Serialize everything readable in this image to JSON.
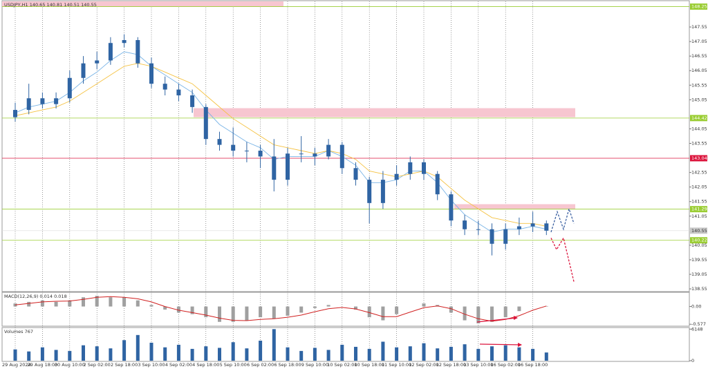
{
  "chart_data": [
    {
      "type": "candlestick",
      "title": "USDJPY,H1  140.65 140.81 140.51 140.55",
      "categories": [
        "29 Aug 2024",
        null,
        "29 Aug 18:00",
        null,
        "30 Aug 10:00",
        null,
        "2 Sep 02:00",
        null,
        "2 Sep 18:00",
        null,
        "3 Sep 10:00",
        null,
        "4 Sep 02:00",
        null,
        "4 Sep 18:00",
        null,
        "5 Sep 10:00",
        null,
        "6 Sep 02:00",
        null,
        "6 Sep 18:00",
        null,
        "9 Sep 10:00",
        null,
        "10 Sep 02:00",
        null,
        "10 Sep 18:00",
        null,
        "11 Sep 10:00",
        null,
        "12 Sep 02:00",
        null,
        "12 Sep 18:00",
        null,
        "13 Sep 10:00",
        null,
        "16 Sep 02:00",
        null,
        "16 Sep 18:00",
        null
      ],
      "open": [
        144.45,
        144.7,
        145.1,
        144.9,
        145.1,
        145.8,
        146.3,
        146.4,
        147.0,
        147.1,
        146.3,
        145.6,
        145.4,
        145.2,
        144.8,
        143.7,
        143.5,
        143.3,
        143.3,
        143.1,
        142.3,
        143.2,
        143.2,
        143.1,
        143.5,
        142.7,
        142.3,
        141.5,
        142.3,
        142.5,
        142.9,
        142.5,
        141.8,
        140.9,
        140.6,
        140.6,
        140.1,
        140.6,
        140.7,
        140.8
      ],
      "high": [
        144.95,
        145.6,
        145.3,
        145.3,
        146.05,
        146.55,
        146.7,
        147.2,
        147.3,
        147.2,
        146.5,
        145.85,
        145.6,
        145.4,
        144.9,
        143.95,
        144.1,
        143.6,
        143.5,
        143.7,
        143.4,
        143.8,
        143.4,
        143.7,
        143.6,
        142.9,
        142.4,
        142.6,
        142.8,
        143.1,
        143.0,
        142.6,
        141.9,
        141.1,
        140.9,
        140.8,
        140.8,
        141.0,
        141.2,
        140.9
      ],
      "low": [
        144.3,
        144.55,
        144.75,
        144.75,
        144.95,
        145.6,
        146.1,
        146.25,
        146.85,
        146.15,
        145.45,
        145.2,
        145.0,
        144.6,
        143.5,
        143.3,
        143.1,
        142.9,
        142.7,
        141.9,
        142.1,
        142.9,
        142.8,
        143.0,
        142.5,
        142.1,
        140.8,
        141.3,
        142.1,
        142.3,
        142.3,
        141.6,
        140.7,
        140.4,
        140.4,
        139.7,
        139.9,
        140.4,
        140.5,
        140.4
      ],
      "close": [
        144.7,
        145.1,
        144.9,
        145.1,
        145.8,
        146.3,
        146.4,
        147.0,
        147.1,
        146.3,
        145.6,
        145.4,
        145.2,
        144.8,
        143.7,
        143.5,
        143.3,
        143.3,
        143.1,
        142.3,
        143.2,
        143.2,
        143.1,
        143.5,
        142.7,
        142.3,
        141.5,
        142.3,
        142.5,
        142.9,
        142.5,
        141.8,
        140.9,
        140.6,
        140.6,
        140.1,
        140.6,
        140.7,
        140.8,
        140.55
      ],
      "color": "#2f64a3",
      "series": [
        {
          "color": "#79b4e6",
          "values": [
            144.6,
            144.8,
            144.9,
            145.0,
            145.3,
            145.7,
            146.0,
            146.4,
            146.7,
            146.6,
            146.2,
            145.9,
            145.6,
            145.3,
            144.7,
            144.2,
            143.9,
            143.6,
            143.4,
            143.0,
            143.1,
            143.1,
            143.1,
            143.3,
            143.1,
            142.8,
            142.2,
            142.2,
            142.3,
            142.6,
            142.6,
            142.2,
            141.6,
            141.1,
            140.8,
            140.5,
            140.6,
            140.6,
            140.7,
            140.6
          ]
        },
        {
          "color": "#f5c242",
          "values": [
            144.5,
            144.6,
            144.7,
            144.8,
            145.0,
            145.3,
            145.6,
            145.9,
            146.2,
            146.3,
            146.2,
            146.0,
            145.8,
            145.6,
            145.2,
            144.8,
            144.4,
            144.1,
            143.8,
            143.5,
            143.4,
            143.3,
            143.2,
            143.3,
            143.2,
            143.0,
            142.6,
            142.5,
            142.4,
            142.5,
            142.6,
            142.4,
            142.0,
            141.6,
            141.3,
            141.0,
            140.9,
            140.8,
            140.8,
            140.7
          ]
        }
      ],
      "ylim": [
        138.48,
        148.43
      ],
      "yticks": [
        147.55,
        147.05,
        146.55,
        146.05,
        145.55,
        145.05,
        144.05,
        143.55,
        142.55,
        142.05,
        141.55,
        141.05,
        140.05,
        139.55,
        139.05,
        138.55
      ],
      "levels": [
        {
          "value": 148.25,
          "color": "#9acd32"
        },
        {
          "value": 144.42,
          "color": "#9acd32"
        },
        {
          "value": 143.04,
          "color": "#dc143c"
        },
        {
          "value": 141.29,
          "color": "#9acd32"
        },
        {
          "value": 140.22,
          "color": "#9acd32"
        }
      ],
      "current_price": 140.55,
      "zones": [
        {
          "from": 148.43,
          "to": 148.25,
          "color": "#f7c6d0"
        },
        {
          "from": 144.76,
          "to": 144.45,
          "color": "#f7c6d0"
        },
        {
          "from": 141.46,
          "to": 141.29,
          "color": "#f7c6d0"
        }
      ],
      "projections": [
        {
          "color": "#3a5fa0",
          "values": [
            140.5,
            141.2,
            140.6,
            141.3,
            140.8
          ]
        },
        {
          "color": "#dc143c",
          "values": [
            140.3,
            139.9,
            140.3,
            138.8
          ]
        }
      ]
    },
    {
      "type": "macd",
      "title": "MACD(12,26,9) 0.014 0.018",
      "values": [
        0.1,
        0.15,
        0.2,
        0.15,
        0.2,
        0.3,
        0.35,
        0.3,
        0.3,
        0.2,
        0.05,
        -0.1,
        -0.2,
        -0.25,
        -0.35,
        -0.5,
        -0.5,
        -0.45,
        -0.35,
        -0.4,
        -0.3,
        -0.2,
        -0.05,
        0.05,
        0.0,
        -0.1,
        -0.35,
        -0.45,
        -0.25,
        0.0,
        0.1,
        0.05,
        -0.2,
        -0.45,
        -0.55,
        -0.5,
        -0.35,
        -0.15,
        0.0,
        0.014
      ],
      "color": "#a0a0a0",
      "series": [
        {
          "color": "#d01f1f",
          "values": [
            0.05,
            0.1,
            0.15,
            0.17,
            0.18,
            0.23,
            0.3,
            0.32,
            0.3,
            0.25,
            0.15,
            0.0,
            -0.12,
            -0.2,
            -0.28,
            -0.38,
            -0.45,
            -0.46,
            -0.42,
            -0.4,
            -0.35,
            -0.28,
            -0.17,
            -0.07,
            -0.03,
            -0.08,
            -0.2,
            -0.33,
            -0.33,
            -0.18,
            -0.04,
            0.02,
            -0.07,
            -0.25,
            -0.4,
            -0.48,
            -0.42,
            -0.3,
            -0.12,
            0.018
          ]
        }
      ],
      "ylim": [
        -0.64,
        0.44
      ],
      "yticks": [
        {
          "value": 0,
          "label": "0.00"
        },
        -0.577
      ]
    },
    {
      "type": "bar",
      "title": "Volumes 767",
      "values": [
        2200,
        1800,
        2600,
        2100,
        1900,
        3000,
        2800,
        2400,
        4000,
        5000,
        3500,
        2600,
        3100,
        2300,
        2800,
        2500,
        3600,
        2400,
        3900,
        6148,
        2600,
        1900,
        2500,
        2100,
        3100,
        2700,
        2300,
        3700,
        2600,
        2800,
        3400,
        2400,
        2700,
        3200,
        2300,
        2800,
        3000,
        2600,
        2300,
        1600
      ],
      "color": "#2f64a3",
      "ylim": [
        0,
        6320
      ],
      "yticks": [
        6148,
        0
      ]
    }
  ]
}
